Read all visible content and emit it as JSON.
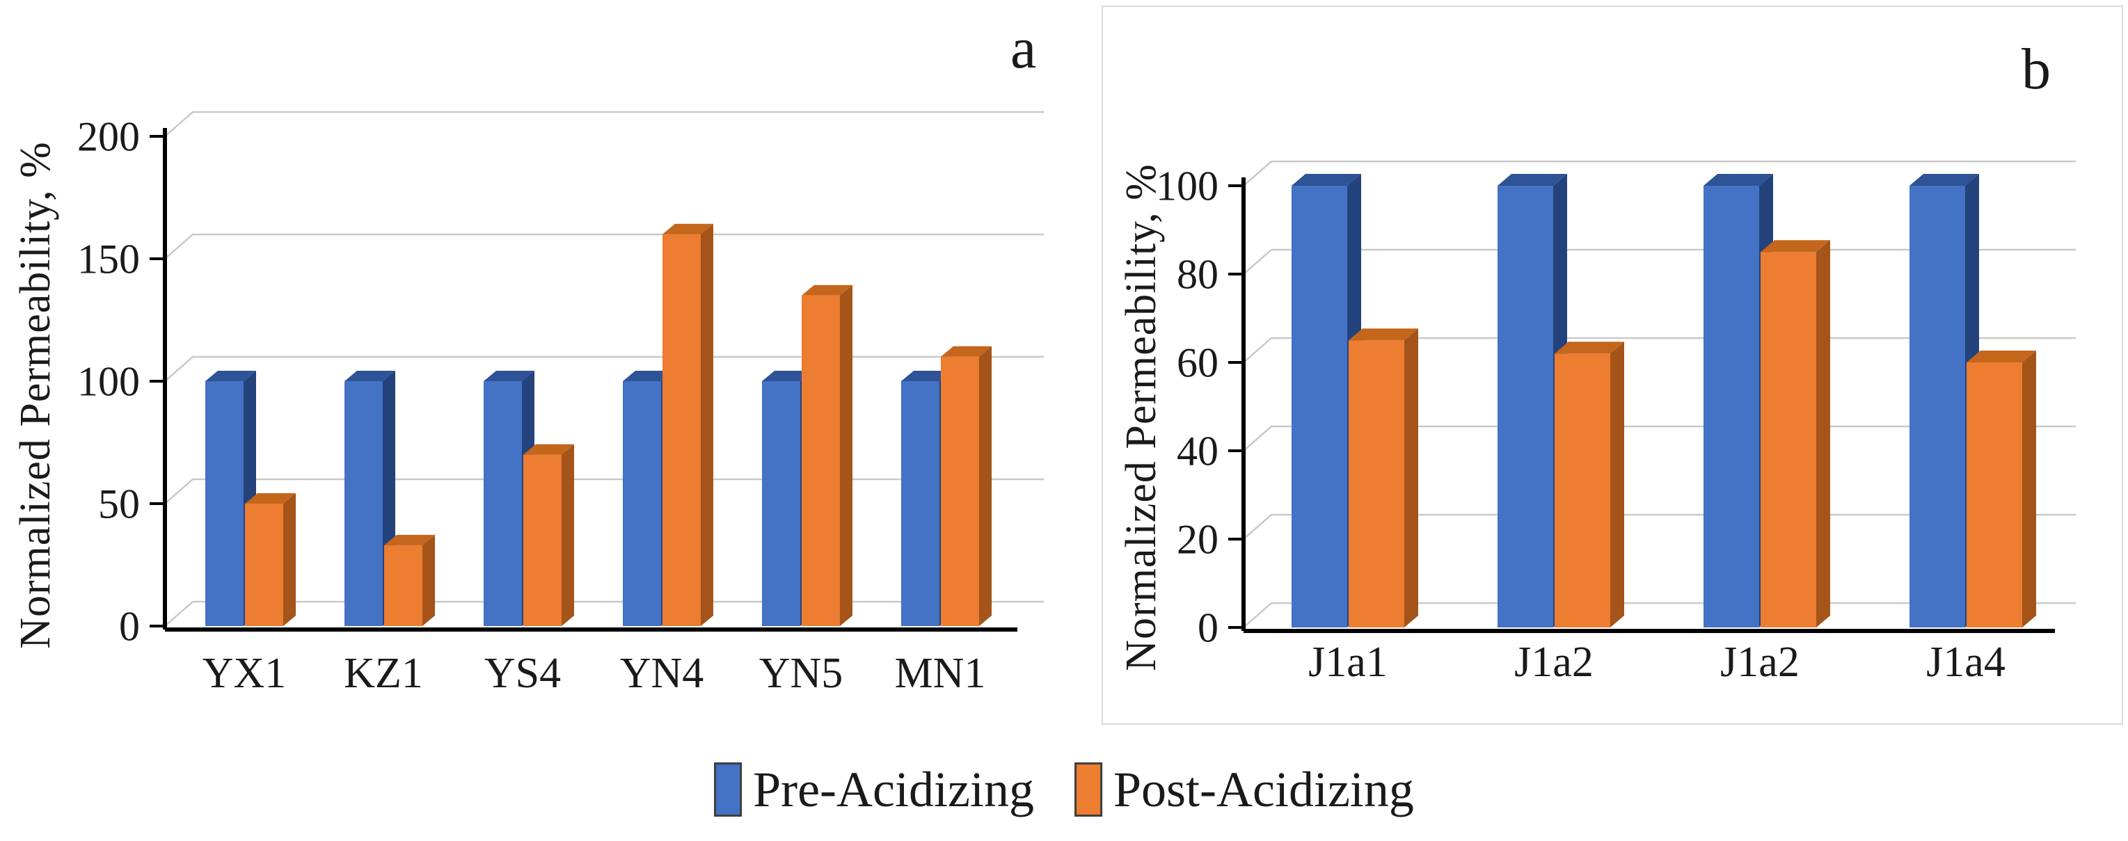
{
  "figure_title": "",
  "chart_data": [
    {
      "type": "bar",
      "panel": "a",
      "title": "",
      "ylabel": "Normalized Permeability, %",
      "xlabel": "",
      "categories": [
        "YX1",
        "KZ1",
        "YS4",
        "YN4",
        "YN5",
        "MN1"
      ],
      "series": [
        {
          "name": "Pre-Acidizing",
          "values": [
            100,
            100,
            100,
            100,
            100,
            100
          ]
        },
        {
          "name": "Post-Acidizing",
          "values": [
            50,
            33,
            70,
            160,
            135,
            110
          ]
        }
      ],
      "ylim": [
        0,
        200
      ],
      "yticks": [
        0,
        50,
        100,
        150,
        200
      ],
      "grid": true,
      "style": "3d-clustered"
    },
    {
      "type": "bar",
      "panel": "b",
      "title": "",
      "ylabel": "Normalized Permeability, %",
      "xlabel": "",
      "categories": [
        "J1a1",
        "J1a2",
        "J1a2",
        "J1a4"
      ],
      "series": [
        {
          "name": "Pre-Acidizing",
          "values": [
            100,
            100,
            100,
            100
          ]
        },
        {
          "name": "Post-Acidizing",
          "values": [
            65,
            62,
            85,
            60
          ]
        }
      ],
      "ylim": [
        0,
        100
      ],
      "yticks": [
        0,
        20,
        40,
        60,
        80,
        100
      ],
      "grid": true,
      "style": "3d-clustered"
    }
  ],
  "legend": {
    "position": "bottom-center",
    "items": [
      {
        "label": "Pre-Acidizing",
        "color": "#4472C4"
      },
      {
        "label": "Post-Acidizing",
        "color": "#ED7D31"
      }
    ]
  },
  "colors": {
    "series": {
      "pre": {
        "front": "#4472C4",
        "top": "#2E5396",
        "side": "#24427C"
      },
      "post": {
        "front": "#ED7D31",
        "top": "#C4661C",
        "side": "#A5541A"
      }
    },
    "gridline": "#C9C9C9",
    "axis": "#000000",
    "text": "#1a1a1a",
    "panel_border": "#D9D9D9",
    "background": "#FFFFFF"
  }
}
